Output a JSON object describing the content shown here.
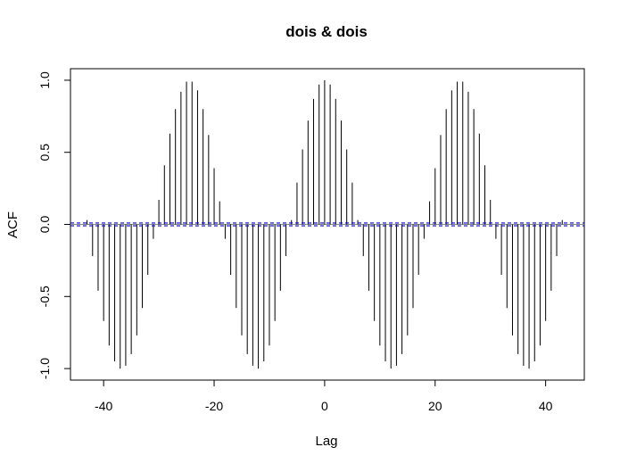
{
  "chart_data": {
    "type": "bar",
    "title": "dois & dois",
    "xlabel": "Lag",
    "ylabel": "ACF",
    "xlim": [
      -46,
      47
    ],
    "ylim": [
      -1.08,
      1.08
    ],
    "xticks": [
      -40,
      -20,
      0,
      20,
      40
    ],
    "xtick_labels": [
      "-40",
      "-20",
      "0",
      "20",
      "40"
    ],
    "yticks": [
      -1.0,
      -0.5,
      0.0,
      0.5,
      1.0
    ],
    "ytick_labels": [
      "-1.0",
      "-0.5",
      "0.0",
      "0.5",
      "1.0"
    ],
    "confidence_bounds": [
      -0.0098,
      0.0098
    ],
    "zero_line": true,
    "colors": {
      "bars": "#000000",
      "confidence": "#0000cc",
      "zero": "#888888",
      "frame": "#000000"
    },
    "lags": [
      -43,
      -42,
      -41,
      -40,
      -39,
      -38,
      -37,
      -36,
      -35,
      -34,
      -33,
      -32,
      -31,
      -30,
      -29,
      -28,
      -27,
      -26,
      -25,
      -24,
      -23,
      -22,
      -21,
      -20,
      -19,
      -18,
      -17,
      -16,
      -15,
      -14,
      -13,
      -12,
      -11,
      -10,
      -9,
      -8,
      -7,
      -6,
      -5,
      -4,
      -3,
      -2,
      -1,
      0,
      1,
      2,
      3,
      4,
      5,
      6,
      7,
      8,
      9,
      10,
      11,
      12,
      13,
      14,
      15,
      16,
      17,
      18,
      19,
      20,
      21,
      22,
      23,
      24,
      25,
      26,
      27,
      28,
      29,
      30,
      31,
      32,
      33,
      34,
      35,
      36,
      37,
      38,
      39,
      40,
      41,
      42,
      43
    ],
    "values": [
      0.03,
      -0.22,
      -0.46,
      -0.67,
      -0.84,
      -0.95,
      -1.0,
      -0.98,
      -0.9,
      -0.77,
      -0.58,
      -0.35,
      -0.1,
      0.17,
      0.41,
      0.63,
      0.8,
      0.92,
      0.99,
      0.99,
      0.93,
      0.8,
      0.62,
      0.39,
      0.16,
      -0.1,
      -0.35,
      -0.58,
      -0.77,
      -0.9,
      -0.98,
      -1.0,
      -0.95,
      -0.84,
      -0.67,
      -0.46,
      -0.22,
      0.03,
      0.29,
      0.52,
      0.72,
      0.87,
      0.97,
      1.0,
      0.97,
      0.87,
      0.72,
      0.52,
      0.29,
      0.03,
      -0.22,
      -0.46,
      -0.67,
      -0.84,
      -0.95,
      -1.0,
      -0.98,
      -0.9,
      -0.77,
      -0.58,
      -0.35,
      -0.1,
      0.16,
      0.39,
      0.62,
      0.8,
      0.93,
      0.99,
      0.99,
      0.92,
      0.8,
      0.63,
      0.41,
      0.17,
      -0.1,
      -0.35,
      -0.58,
      -0.77,
      -0.9,
      -0.98,
      -1.0,
      -0.95,
      -0.84,
      -0.67,
      -0.46,
      -0.22,
      0.03
    ]
  }
}
